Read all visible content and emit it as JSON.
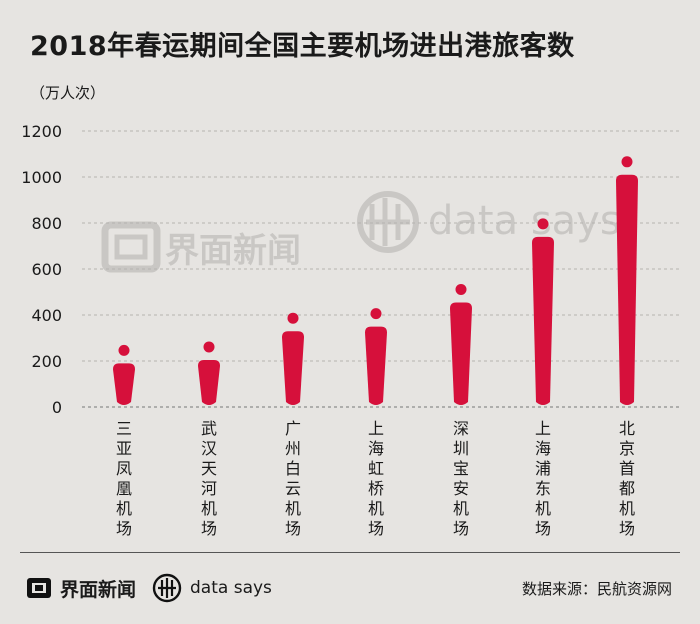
{
  "header": {
    "title": "2018年春运期间全国主要机场进出港旅客数",
    "unit": "（万人次）"
  },
  "watermark": {
    "brand_cn": "界面新闻",
    "brand_en": "data says"
  },
  "footer": {
    "brand_cn": "界面新闻",
    "brand_en": "data says",
    "source": "数据来源：民航资源网"
  },
  "colors": {
    "background": "#e6e4e1",
    "bar": "#d6103b",
    "text": "#1a1a1a"
  },
  "chart_data": {
    "type": "bar",
    "title": "2018年春运期间全国主要机场进出港旅客数",
    "ylabel": "（万人次）",
    "xlabel": "",
    "categories": [
      "三亚凤凰机场",
      "武汉天河机场",
      "广州白云机场",
      "上海虹桥机场",
      "深圳宝安机场",
      "上海浦东机场",
      "北京首都机场"
    ],
    "values": [
      220,
      235,
      360,
      380,
      485,
      770,
      1040
    ],
    "ylim": [
      0,
      1200
    ],
    "yticks": [
      0,
      200,
      400,
      600,
      800,
      1000,
      1200
    ],
    "ytick_labels": [
      "0",
      "200",
      "400",
      "600",
      "800",
      "1000",
      "1200"
    ],
    "grid": "dashed horizontal",
    "legend": "none",
    "marker": "person-shaped bars (rounded body with a dot head)"
  }
}
